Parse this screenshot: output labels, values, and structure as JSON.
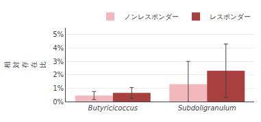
{
  "chart_data": {
    "type": "bar",
    "y_label": "相対存在比",
    "categories": [
      "Butyricicoccus",
      "Subdoligranulum"
    ],
    "series": [
      {
        "name": "ノンレスポンダー",
        "color": "#f2b8bc",
        "values": [
          0.0045,
          0.013
        ],
        "errors": [
          0.003,
          0.017
        ]
      },
      {
        "name": "レスポンダー",
        "color": "#a84040",
        "values": [
          0.0065,
          0.023
        ],
        "errors": [
          0.004,
          0.02
        ]
      }
    ],
    "ylim": [
      0,
      0.055
    ],
    "yticks": [
      {
        "value": 0,
        "label": "0%"
      },
      {
        "value": 0.01,
        "label": "1%"
      },
      {
        "value": 0.02,
        "label": "2%"
      },
      {
        "value": 0.03,
        "label": "3%"
      },
      {
        "value": 0.04,
        "label": "4%"
      },
      {
        "value": 0.05,
        "label": "5%"
      }
    ],
    "grid": true,
    "legend": "upper right"
  }
}
